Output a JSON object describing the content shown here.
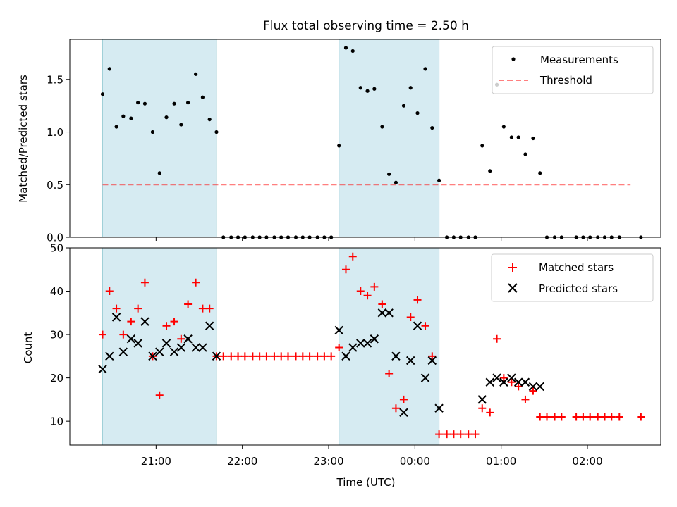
{
  "title": "Flux total observing time = 2.50 h",
  "colors": {
    "measurement": "#000000",
    "threshold": "#ff0000",
    "matched": "#ff0000",
    "predicted": "#000000",
    "shading": "#add8e6"
  },
  "chart_data": [
    {
      "type": "scatter",
      "panel": "top",
      "ylabel": "Matched/Predicted stars",
      "ylim": [
        0,
        1.88
      ],
      "yticks": [
        "0.0",
        "0.5",
        "1.0",
        "1.5"
      ],
      "grid": false,
      "legend": {
        "placement": "top-right",
        "entries": [
          "Measurements",
          "Threshold"
        ]
      },
      "threshold": {
        "name": "Threshold",
        "value": 0.5,
        "x_start": 20.38,
        "x_end": 26.5,
        "style": "dashed"
      },
      "shaded_spans": [
        [
          20.38,
          21.7
        ],
        [
          23.12,
          24.28
        ]
      ],
      "series": [
        {
          "name": "Measurements",
          "x": [
            20.38,
            20.46,
            20.54,
            20.62,
            20.71,
            20.79,
            20.87,
            20.96,
            21.04,
            21.12,
            21.21,
            21.29,
            21.37,
            21.46,
            21.54,
            21.62,
            21.7,
            21.78,
            21.87,
            21.95,
            22.03,
            22.12,
            22.2,
            22.28,
            22.37,
            22.45,
            22.53,
            22.62,
            22.7,
            22.78,
            22.87,
            22.95,
            23.03,
            23.12,
            23.2,
            23.28,
            23.37,
            23.45,
            23.53,
            23.62,
            23.7,
            23.78,
            23.87,
            23.95,
            24.03,
            24.12,
            24.2,
            24.28,
            24.37,
            24.45,
            24.53,
            24.62,
            24.7,
            24.78,
            24.87,
            24.95,
            25.03,
            25.12,
            25.2,
            25.28,
            25.37,
            25.45,
            25.53,
            25.62,
            25.7,
            25.87,
            25.95,
            26.03,
            26.12,
            26.2,
            26.28,
            26.37,
            26.62
          ],
          "y": [
            1.36,
            1.6,
            1.05,
            1.15,
            1.13,
            1.28,
            1.27,
            1.0,
            0.61,
            1.14,
            1.27,
            1.07,
            1.28,
            1.55,
            1.33,
            1.12,
            1.0,
            0,
            0,
            0,
            0,
            0,
            0,
            0,
            0,
            0,
            0,
            0,
            0,
            0,
            0,
            0,
            0,
            0.87,
            1.8,
            1.77,
            1.42,
            1.39,
            1.41,
            1.05,
            0.6,
            0.52,
            1.25,
            1.42,
            1.18,
            1.6,
            1.04,
            0.54,
            0,
            0,
            0,
            0,
            0,
            0.87,
            0.63,
            1.45,
            1.05,
            0.95,
            0.95,
            0.79,
            0.94,
            0.61,
            0,
            0,
            0,
            0,
            0,
            0,
            0,
            0,
            0,
            0,
            0
          ]
        }
      ]
    },
    {
      "type": "scatter",
      "panel": "bottom",
      "xlabel": "Time (UTC)",
      "ylabel": "Count",
      "ylim": [
        4.5,
        50
      ],
      "xlim": [
        20.0,
        26.85
      ],
      "xticks": [
        {
          "value": 21,
          "label": "21:00"
        },
        {
          "value": 22,
          "label": "22:00"
        },
        {
          "value": 23,
          "label": "23:00"
        },
        {
          "value": 24,
          "label": "00:00"
        },
        {
          "value": 25,
          "label": "01:00"
        },
        {
          "value": 26,
          "label": "02:00"
        }
      ],
      "yticks": [
        "10",
        "20",
        "30",
        "40",
        "50"
      ],
      "grid": false,
      "legend": {
        "placement": "top-right",
        "entries": [
          "Matched stars",
          "Predicted stars"
        ]
      },
      "shaded_spans": [
        [
          20.38,
          21.7
        ],
        [
          23.12,
          24.28
        ]
      ],
      "series": [
        {
          "name": "Matched stars",
          "marker": "plus",
          "x": [
            20.38,
            20.46,
            20.54,
            20.62,
            20.71,
            20.79,
            20.87,
            20.96,
            21.04,
            21.12,
            21.21,
            21.29,
            21.37,
            21.46,
            21.54,
            21.62,
            21.7,
            21.78,
            21.87,
            21.95,
            22.03,
            22.12,
            22.2,
            22.28,
            22.37,
            22.45,
            22.53,
            22.62,
            22.7,
            22.78,
            22.87,
            22.95,
            23.03,
            23.12,
            23.2,
            23.28,
            23.37,
            23.45,
            23.53,
            23.62,
            23.7,
            23.78,
            23.87,
            23.95,
            24.03,
            24.12,
            24.2,
            24.28,
            24.37,
            24.45,
            24.53,
            24.62,
            24.7,
            24.78,
            24.87,
            24.95,
            25.03,
            25.12,
            25.2,
            25.28,
            25.37,
            25.45,
            25.53,
            25.62,
            25.7,
            25.87,
            25.95,
            26.03,
            26.12,
            26.2,
            26.28,
            26.37,
            26.62
          ],
          "y": [
            30,
            40,
            36,
            30,
            33,
            36,
            42,
            25,
            16,
            32,
            33,
            29,
            37,
            42,
            36,
            36,
            25,
            25,
            25,
            25,
            25,
            25,
            25,
            25,
            25,
            25,
            25,
            25,
            25,
            25,
            25,
            25,
            25,
            27,
            45,
            48,
            40,
            39,
            41,
            37,
            21,
            13,
            15,
            34,
            38,
            32,
            25,
            7,
            7,
            7,
            7,
            7,
            7,
            13,
            12,
            29,
            20,
            19,
            18,
            15,
            17,
            11,
            11,
            11,
            11,
            11,
            11,
            11,
            11,
            11,
            11,
            11,
            11
          ]
        },
        {
          "name": "Predicted stars",
          "marker": "x",
          "x": [
            20.38,
            20.46,
            20.54,
            20.62,
            20.71,
            20.79,
            20.87,
            20.96,
            21.04,
            21.12,
            21.21,
            21.29,
            21.37,
            21.46,
            21.54,
            21.62,
            21.7,
            23.12,
            23.2,
            23.28,
            23.37,
            23.45,
            23.53,
            23.62,
            23.7,
            23.78,
            23.87,
            23.95,
            24.03,
            24.12,
            24.2,
            24.28,
            24.78,
            24.87,
            24.95,
            25.03,
            25.12,
            25.2,
            25.28,
            25.37,
            25.45
          ],
          "y": [
            22,
            25,
            34,
            26,
            29,
            28,
            33,
            25,
            26,
            28,
            26,
            27,
            29,
            27,
            27,
            32,
            25,
            31,
            25,
            27,
            28,
            28,
            29,
            35,
            35,
            25,
            12,
            24,
            32,
            20,
            24,
            13,
            15,
            19,
            20,
            19,
            20,
            19,
            19,
            18,
            18
          ]
        }
      ]
    }
  ]
}
